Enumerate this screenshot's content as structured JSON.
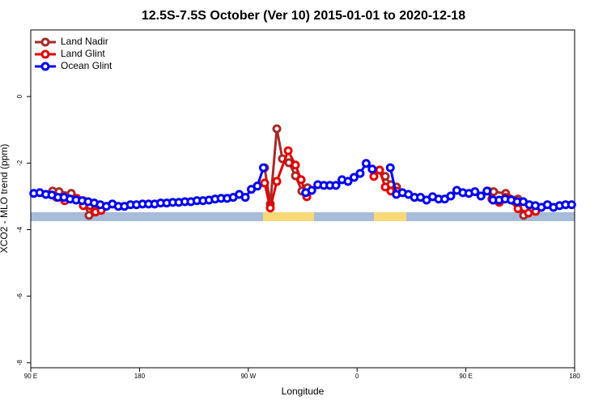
{
  "chart_data": {
    "type": "line",
    "title": "12.5S-7.5S October (Ver 10)   2015-01-01 to 2020-12-18",
    "x_label": "Longitude",
    "y_label": "XCO2 - MLO trend (ppm)",
    "xlim": [
      90,
      540
    ],
    "xticks": [
      {
        "value": 90,
        "label": "90 E"
      },
      {
        "value": 180,
        "label": "180"
      },
      {
        "value": 270,
        "label": "90 W"
      },
      {
        "value": 360,
        "label": "0"
      },
      {
        "value": 450,
        "label": "90 E"
      },
      {
        "value": 540,
        "label": "180"
      }
    ],
    "ylim": [
      -8.15,
      2.0
    ],
    "yticks": [
      0,
      -2,
      -4,
      -6,
      -8
    ],
    "legend": "top-left",
    "series": [
      {
        "name": "Land Nadir",
        "color": "#a52a2a",
        "x": [
          108.1,
          113.4,
          123.5,
          133.5,
          138.2,
          142.9,
          null,
          283.5,
          288.2,
          293.6,
          298.2,
          303.6,
          309.0,
          314.3,
          319.0,
          null,
          378.6,
          383.3,
          388.0,
          392.7,
          null,
          468.3,
          473.0,
          483.0,
          493.1,
          497.8
        ],
        "values": [
          -2.84,
          -2.86,
          -2.91,
          -3.13,
          -3.57,
          -3.4,
          null,
          -2.14,
          -3.23,
          -0.97,
          -1.87,
          -1.99,
          -2.38,
          -2.84,
          -2.74,
          null,
          -2.21,
          -2.4,
          -2.65,
          -2.72,
          null,
          -2.84,
          -2.86,
          -2.91,
          -3.08,
          -3.57
        ]
      },
      {
        "name": "Land Glint",
        "color": "#e00000",
        "x": [
          111.4,
          118.1,
          128.1,
          133.5,
          143.6,
          148.3,
          null,
          283.5,
          288.2,
          293.6,
          303.0,
          309.0,
          313.7,
          318.4,
          null,
          373.9,
          378.6,
          383.3,
          388.0,
          392.7,
          null,
          471.6,
          477.7,
          483.0,
          493.1,
          501.8,
          507.8
        ],
        "values": [
          -3.03,
          -3.13,
          -3.06,
          -3.28,
          -3.47,
          -3.42,
          null,
          -2.6,
          -3.35,
          -2.55,
          -1.63,
          -2.06,
          -2.5,
          -3.01,
          null,
          -2.4,
          -2.21,
          -2.72,
          -2.84,
          -2.84,
          null,
          -3.08,
          -3.18,
          -3.03,
          -3.37,
          -3.5,
          -3.45
        ]
      },
      {
        "name": "Ocean Glint",
        "color": "#0000ee",
        "x": [
          92.5,
          97.5,
          102.5,
          107.5,
          112.5,
          117.5,
          122.5,
          127.5,
          132.5,
          137.5,
          142.5,
          147.5,
          152.5,
          157.5,
          162.5,
          167.5,
          172.5,
          177.5,
          182.5,
          187.5,
          192.5,
          197.5,
          202.5,
          207.5,
          212.5,
          217.5,
          222.5,
          227.5,
          232.5,
          237.5,
          242.5,
          247.5,
          252.5,
          257.5,
          262.5,
          267.5,
          272.5,
          277.5,
          282.5,
          287.5,
          292.5,
          297.5,
          302.5,
          307.5,
          312.5,
          317.5,
          322.5,
          327.5,
          332.5,
          337.5,
          342.5,
          347.5,
          352.5,
          357.5,
          362.5,
          367.5,
          372.5,
          377.5,
          382.5,
          387.5,
          392.5,
          397.5,
          402.5,
          407.5,
          412.5,
          417.5,
          422.5,
          427.5,
          432.5,
          437.5,
          442.5,
          447.5,
          452.5,
          457.5,
          462.5,
          467.5,
          472.5,
          477.5,
          482.5,
          487.5,
          492.5,
          497.5,
          502.5,
          507.5,
          512.5,
          517.5,
          522.5,
          527.5,
          532.5,
          537.5
        ],
        "values": [
          -2.91,
          -2.89,
          -2.94,
          -2.96,
          -3.03,
          -3.03,
          -3.08,
          -3.11,
          -3.13,
          -3.16,
          -3.2,
          -3.25,
          -3.3,
          -3.23,
          -3.3,
          -3.3,
          -3.25,
          -3.25,
          -3.23,
          -3.23,
          -3.23,
          -3.2,
          -3.2,
          -3.18,
          -3.18,
          -3.16,
          -3.16,
          -3.13,
          -3.13,
          -3.11,
          -3.08,
          -3.06,
          -3.06,
          -3.03,
          -2.94,
          -3.03,
          -2.79,
          -2.69,
          -2.14,
          null,
          null,
          null,
          null,
          null,
          null,
          -2.89,
          -2.82,
          -2.65,
          -2.67,
          -2.67,
          -2.67,
          -2.5,
          -2.55,
          -2.43,
          -2.31,
          -2.01,
          -2.18,
          null,
          null,
          -2.14,
          -2.94,
          -2.89,
          -2.94,
          -3.03,
          -3.03,
          -3.11,
          -3.01,
          -3.08,
          -3.08,
          -2.99,
          -2.82,
          -2.89,
          -2.91,
          -2.86,
          -2.99,
          -2.84,
          -3.11,
          -3.11,
          -3.08,
          -3.11,
          -3.16,
          -3.16,
          -3.25,
          -3.28,
          -3.33,
          -3.25,
          -3.33,
          -3.28,
          -3.25,
          -3.25
        ]
      }
    ]
  }
}
